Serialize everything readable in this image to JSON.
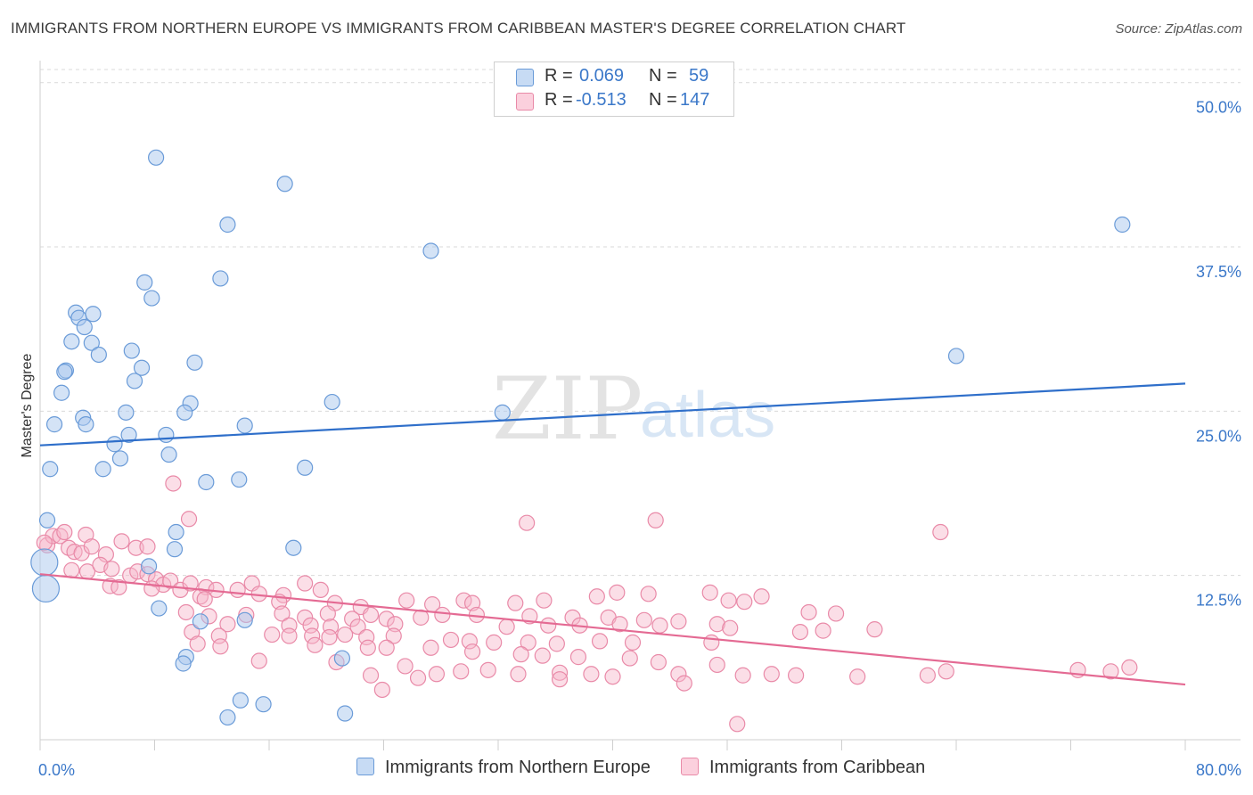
{
  "title": "IMMIGRANTS FROM NORTHERN EUROPE VS IMMIGRANTS FROM CARIBBEAN MASTER'S DEGREE CORRELATION CHART",
  "source": "Source: ZipAtlas.com",
  "watermark": {
    "zip": "ZIP",
    "atlas": "atlas"
  },
  "legend": {
    "rows": [
      {
        "r_label": "R =",
        "r_value": "0.069",
        "n_label": "N =",
        "n_value": "59"
      },
      {
        "r_label": "R =",
        "r_value": "-0.513",
        "n_label": "N =",
        "n_value": "147"
      }
    ]
  },
  "colors": {
    "blue_fill": "#a9c8ee",
    "blue_stroke": "#6a9bd8",
    "blue_line": "#2f6fca",
    "pink_fill": "#f6b6c9",
    "pink_stroke": "#e98aa8",
    "pink_line": "#e46a93",
    "tick": "#3b78c9",
    "grid": "#d9d9d9"
  },
  "chart_data": {
    "type": "scatter",
    "title": "IMMIGRANTS FROM NORTHERN EUROPE VS IMMIGRANTS FROM CARIBBEAN MASTER'S DEGREE CORRELATION CHART",
    "xlabel": "",
    "ylabel": "Master's Degree",
    "xlim": [
      0,
      80
    ],
    "ylim": [
      0,
      51
    ],
    "x_tick_labels": [
      "0.0%",
      "80.0%"
    ],
    "y_ticks": [
      12.5,
      25.0,
      37.5,
      50.0
    ],
    "y_tick_labels": [
      "12.5%",
      "25.0%",
      "37.5%",
      "50.0%"
    ],
    "grid": true,
    "series": [
      {
        "name": "Immigrants from Northern Europe",
        "r": 0.069,
        "n": 59,
        "trend": {
          "x": [
            0,
            80
          ],
          "y": [
            22.4,
            27.1
          ]
        },
        "points": [
          [
            8.1,
            44.3
          ],
          [
            17.1,
            42.3
          ],
          [
            13.1,
            39.2
          ],
          [
            27.3,
            37.2
          ],
          [
            75.6,
            39.2
          ],
          [
            12.6,
            35.1
          ],
          [
            7.3,
            34.8
          ],
          [
            7.8,
            33.6
          ],
          [
            2.5,
            32.5
          ],
          [
            3.7,
            32.4
          ],
          [
            2.7,
            32.1
          ],
          [
            3.1,
            31.4
          ],
          [
            2.2,
            30.3
          ],
          [
            3.6,
            30.2
          ],
          [
            4.1,
            29.3
          ],
          [
            6.4,
            29.6
          ],
          [
            64.0,
            29.2
          ],
          [
            10.8,
            28.7
          ],
          [
            7.1,
            28.3
          ],
          [
            1.8,
            28.1
          ],
          [
            1.7,
            28.0
          ],
          [
            6.6,
            27.3
          ],
          [
            1.5,
            26.4
          ],
          [
            20.4,
            25.7
          ],
          [
            10.5,
            25.6
          ],
          [
            3.0,
            24.5
          ],
          [
            1.0,
            24.0
          ],
          [
            6.0,
            24.9
          ],
          [
            10.1,
            24.9
          ],
          [
            32.3,
            24.9
          ],
          [
            3.2,
            24.0
          ],
          [
            14.3,
            23.9
          ],
          [
            6.2,
            23.2
          ],
          [
            8.8,
            23.2
          ],
          [
            5.2,
            22.5
          ],
          [
            9.0,
            21.7
          ],
          [
            5.6,
            21.4
          ],
          [
            0.7,
            20.6
          ],
          [
            4.4,
            20.6
          ],
          [
            18.5,
            20.7
          ],
          [
            11.6,
            19.6
          ],
          [
            13.9,
            19.8
          ],
          [
            0.5,
            16.7
          ],
          [
            9.5,
            15.8
          ],
          [
            17.7,
            14.6
          ],
          [
            9.4,
            14.5
          ],
          [
            7.6,
            13.2
          ],
          [
            8.3,
            10.0
          ],
          [
            11.2,
            9.0
          ],
          [
            14.3,
            9.1
          ],
          [
            10.2,
            6.3
          ],
          [
            10.0,
            5.8
          ],
          [
            21.1,
            6.2
          ],
          [
            14.0,
            3.0
          ],
          [
            15.6,
            2.7
          ],
          [
            13.1,
            1.7
          ],
          [
            21.3,
            2.0
          ],
          [
            0.4,
            11.5
          ],
          [
            0.3,
            13.5
          ]
        ]
      },
      {
        "name": "Immigrants from Caribbean",
        "r": -0.513,
        "n": 147,
        "trend": {
          "x": [
            0,
            80
          ],
          "y": [
            12.6,
            4.2
          ]
        },
        "points": [
          [
            0.5,
            14.8
          ],
          [
            0.9,
            15.5
          ],
          [
            1.4,
            15.5
          ],
          [
            1.7,
            15.8
          ],
          [
            3.2,
            15.6
          ],
          [
            0.3,
            15.0
          ],
          [
            2.0,
            14.6
          ],
          [
            2.4,
            14.3
          ],
          [
            2.9,
            14.2
          ],
          [
            3.6,
            14.7
          ],
          [
            4.6,
            14.1
          ],
          [
            5.7,
            15.1
          ],
          [
            6.7,
            14.6
          ],
          [
            7.5,
            14.7
          ],
          [
            2.2,
            12.9
          ],
          [
            3.3,
            12.8
          ],
          [
            4.2,
            13.3
          ],
          [
            5.0,
            13.0
          ],
          [
            6.3,
            12.5
          ],
          [
            6.8,
            12.8
          ],
          [
            7.5,
            12.6
          ],
          [
            8.1,
            12.2
          ],
          [
            8.6,
            11.8
          ],
          [
            9.1,
            12.1
          ],
          [
            4.9,
            11.7
          ],
          [
            5.5,
            11.6
          ],
          [
            7.8,
            11.5
          ],
          [
            9.8,
            11.4
          ],
          [
            10.5,
            11.9
          ],
          [
            11.6,
            11.6
          ],
          [
            12.3,
            11.4
          ],
          [
            13.8,
            11.4
          ],
          [
            14.8,
            11.9
          ],
          [
            15.3,
            11.1
          ],
          [
            17.0,
            11.0
          ],
          [
            18.5,
            11.9
          ],
          [
            19.6,
            11.4
          ],
          [
            11.2,
            10.9
          ],
          [
            11.5,
            10.7
          ],
          [
            16.7,
            10.5
          ],
          [
            20.6,
            10.4
          ],
          [
            22.4,
            10.1
          ],
          [
            25.6,
            10.6
          ],
          [
            27.4,
            10.3
          ],
          [
            29.6,
            10.6
          ],
          [
            30.2,
            10.4
          ],
          [
            33.2,
            10.4
          ],
          [
            35.2,
            10.6
          ],
          [
            38.9,
            10.9
          ],
          [
            40.3,
            11.2
          ],
          [
            42.5,
            11.1
          ],
          [
            46.8,
            11.2
          ],
          [
            48.1,
            10.6
          ],
          [
            49.2,
            10.5
          ],
          [
            50.4,
            10.9
          ],
          [
            10.2,
            9.7
          ],
          [
            11.8,
            9.4
          ],
          [
            14.4,
            9.5
          ],
          [
            16.9,
            9.6
          ],
          [
            18.5,
            9.3
          ],
          [
            20.1,
            9.6
          ],
          [
            21.8,
            9.2
          ],
          [
            23.1,
            9.5
          ],
          [
            24.2,
            9.2
          ],
          [
            26.6,
            9.3
          ],
          [
            28.1,
            9.5
          ],
          [
            30.5,
            9.5
          ],
          [
            34.2,
            9.4
          ],
          [
            37.2,
            9.3
          ],
          [
            39.7,
            9.3
          ],
          [
            42.2,
            9.1
          ],
          [
            44.6,
            9.0
          ],
          [
            47.3,
            8.8
          ],
          [
            53.7,
            9.7
          ],
          [
            55.6,
            9.6
          ],
          [
            13.1,
            8.8
          ],
          [
            17.4,
            8.7
          ],
          [
            18.9,
            8.7
          ],
          [
            20.3,
            8.6
          ],
          [
            22.2,
            8.6
          ],
          [
            24.8,
            8.8
          ],
          [
            32.6,
            8.6
          ],
          [
            35.5,
            8.7
          ],
          [
            37.7,
            8.7
          ],
          [
            40.5,
            8.8
          ],
          [
            43.3,
            8.7
          ],
          [
            48.2,
            8.5
          ],
          [
            53.1,
            8.2
          ],
          [
            54.7,
            8.3
          ],
          [
            58.3,
            8.4
          ],
          [
            10.6,
            8.2
          ],
          [
            12.5,
            7.9
          ],
          [
            16.2,
            8.0
          ],
          [
            17.4,
            7.9
          ],
          [
            19.0,
            7.9
          ],
          [
            20.2,
            7.8
          ],
          [
            21.3,
            8.0
          ],
          [
            22.8,
            7.8
          ],
          [
            24.7,
            7.9
          ],
          [
            28.7,
            7.6
          ],
          [
            30.0,
            7.5
          ],
          [
            31.7,
            7.4
          ],
          [
            34.1,
            7.4
          ],
          [
            36.1,
            7.3
          ],
          [
            39.1,
            7.5
          ],
          [
            41.4,
            7.4
          ],
          [
            46.9,
            7.4
          ],
          [
            11.0,
            7.3
          ],
          [
            12.6,
            7.1
          ],
          [
            19.2,
            7.2
          ],
          [
            22.9,
            7.0
          ],
          [
            24.2,
            7.0
          ],
          [
            27.3,
            7.0
          ],
          [
            30.2,
            6.7
          ],
          [
            33.6,
            6.5
          ],
          [
            35.1,
            6.4
          ],
          [
            37.6,
            6.3
          ],
          [
            41.2,
            6.2
          ],
          [
            43.2,
            5.9
          ],
          [
            47.3,
            5.7
          ],
          [
            15.3,
            6.0
          ],
          [
            20.7,
            5.9
          ],
          [
            25.5,
            5.6
          ],
          [
            27.7,
            5.0
          ],
          [
            29.4,
            5.2
          ],
          [
            31.3,
            5.3
          ],
          [
            33.4,
            5.0
          ],
          [
            36.3,
            5.1
          ],
          [
            38.5,
            5.0
          ],
          [
            40.0,
            4.8
          ],
          [
            44.6,
            5.0
          ],
          [
            49.1,
            4.9
          ],
          [
            51.1,
            5.0
          ],
          [
            52.8,
            4.9
          ],
          [
            57.1,
            4.8
          ],
          [
            62.0,
            4.9
          ],
          [
            63.3,
            5.2
          ],
          [
            72.5,
            5.3
          ],
          [
            74.8,
            5.2
          ],
          [
            76.1,
            5.5
          ],
          [
            23.1,
            4.9
          ],
          [
            23.9,
            3.8
          ],
          [
            26.4,
            4.7
          ],
          [
            36.3,
            4.6
          ],
          [
            45.0,
            4.3
          ],
          [
            48.7,
            1.2
          ],
          [
            9.3,
            19.5
          ],
          [
            10.4,
            16.8
          ],
          [
            34.0,
            16.5
          ],
          [
            43.0,
            16.7
          ],
          [
            62.9,
            15.8
          ]
        ]
      }
    ]
  }
}
